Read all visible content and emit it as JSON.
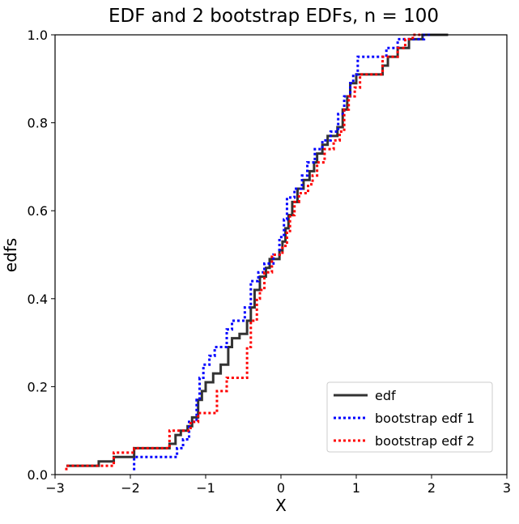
{
  "chart_data": {
    "type": "line",
    "title": "EDF and 2 bootstrap EDFs, n = 100",
    "xlabel": "X",
    "ylabel": "edfs",
    "xlim": [
      -3,
      3
    ],
    "ylim": [
      0,
      1.0
    ],
    "xticks": [
      -3,
      -2,
      -1,
      0,
      1,
      2,
      3
    ],
    "xtick_labels": [
      "−3",
      "−2",
      "−1",
      "0",
      "1",
      "2",
      "3"
    ],
    "yticks": [
      0.0,
      0.2,
      0.4,
      0.6,
      0.8,
      1.0
    ],
    "ytick_labels": [
      "0.0",
      "0.2",
      "0.4",
      "0.6",
      "0.8",
      "1.0"
    ],
    "grid": false,
    "legend_position": "lower-right",
    "series": [
      {
        "name": "edf",
        "color": "#333333",
        "style": "solid",
        "points": [
          [
            -2.85,
            0.02
          ],
          [
            -2.42,
            0.02
          ],
          [
            -2.42,
            0.03
          ],
          [
            -2.22,
            0.03
          ],
          [
            -2.22,
            0.04
          ],
          [
            -1.95,
            0.04
          ],
          [
            -1.95,
            0.06
          ],
          [
            -1.48,
            0.06
          ],
          [
            -1.48,
            0.07
          ],
          [
            -1.4,
            0.07
          ],
          [
            -1.4,
            0.09
          ],
          [
            -1.33,
            0.09
          ],
          [
            -1.33,
            0.1
          ],
          [
            -1.24,
            0.1
          ],
          [
            -1.24,
            0.11
          ],
          [
            -1.18,
            0.11
          ],
          [
            -1.18,
            0.13
          ],
          [
            -1.1,
            0.13
          ],
          [
            -1.1,
            0.17
          ],
          [
            -1.05,
            0.17
          ],
          [
            -1.05,
            0.19
          ],
          [
            -1.0,
            0.19
          ],
          [
            -1.0,
            0.21
          ],
          [
            -0.9,
            0.21
          ],
          [
            -0.9,
            0.23
          ],
          [
            -0.8,
            0.23
          ],
          [
            -0.8,
            0.25
          ],
          [
            -0.7,
            0.25
          ],
          [
            -0.7,
            0.29
          ],
          [
            -0.65,
            0.29
          ],
          [
            -0.65,
            0.31
          ],
          [
            -0.55,
            0.31
          ],
          [
            -0.55,
            0.32
          ],
          [
            -0.45,
            0.32
          ],
          [
            -0.45,
            0.35
          ],
          [
            -0.4,
            0.35
          ],
          [
            -0.4,
            0.38
          ],
          [
            -0.35,
            0.38
          ],
          [
            -0.35,
            0.42
          ],
          [
            -0.28,
            0.42
          ],
          [
            -0.28,
            0.45
          ],
          [
            -0.2,
            0.45
          ],
          [
            -0.2,
            0.47
          ],
          [
            -0.15,
            0.47
          ],
          [
            -0.15,
            0.49
          ],
          [
            -0.02,
            0.49
          ],
          [
            -0.02,
            0.51
          ],
          [
            0.02,
            0.51
          ],
          [
            0.02,
            0.53
          ],
          [
            0.06,
            0.53
          ],
          [
            0.06,
            0.56
          ],
          [
            0.1,
            0.56
          ],
          [
            0.1,
            0.59
          ],
          [
            0.15,
            0.59
          ],
          [
            0.15,
            0.62
          ],
          [
            0.22,
            0.62
          ],
          [
            0.22,
            0.65
          ],
          [
            0.3,
            0.65
          ],
          [
            0.3,
            0.67
          ],
          [
            0.38,
            0.67
          ],
          [
            0.38,
            0.69
          ],
          [
            0.44,
            0.69
          ],
          [
            0.44,
            0.71
          ],
          [
            0.48,
            0.71
          ],
          [
            0.48,
            0.73
          ],
          [
            0.55,
            0.73
          ],
          [
            0.55,
            0.75
          ],
          [
            0.62,
            0.75
          ],
          [
            0.62,
            0.77
          ],
          [
            0.75,
            0.77
          ],
          [
            0.75,
            0.79
          ],
          [
            0.82,
            0.79
          ],
          [
            0.82,
            0.83
          ],
          [
            0.88,
            0.83
          ],
          [
            0.88,
            0.86
          ],
          [
            0.92,
            0.86
          ],
          [
            0.92,
            0.89
          ],
          [
            1.0,
            0.89
          ],
          [
            1.0,
            0.91
          ],
          [
            1.35,
            0.91
          ],
          [
            1.35,
            0.93
          ],
          [
            1.42,
            0.93
          ],
          [
            1.42,
            0.95
          ],
          [
            1.55,
            0.95
          ],
          [
            1.55,
            0.97
          ],
          [
            1.7,
            0.97
          ],
          [
            1.7,
            0.99
          ],
          [
            1.88,
            0.99
          ],
          [
            1.88,
            1.0
          ],
          [
            2.22,
            1.0
          ]
        ]
      },
      {
        "name": "bootstrap edf 1",
        "color": "#0000ff",
        "style": "dotted",
        "points": [
          [
            -1.95,
            0.01
          ],
          [
            -1.95,
            0.04
          ],
          [
            -1.38,
            0.04
          ],
          [
            -1.38,
            0.06
          ],
          [
            -1.3,
            0.06
          ],
          [
            -1.3,
            0.08
          ],
          [
            -1.22,
            0.08
          ],
          [
            -1.22,
            0.12
          ],
          [
            -1.12,
            0.12
          ],
          [
            -1.12,
            0.17
          ],
          [
            -1.08,
            0.17
          ],
          [
            -1.08,
            0.22
          ],
          [
            -1.03,
            0.22
          ],
          [
            -1.03,
            0.25
          ],
          [
            -0.95,
            0.25
          ],
          [
            -0.95,
            0.27
          ],
          [
            -0.88,
            0.27
          ],
          [
            -0.88,
            0.29
          ],
          [
            -0.72,
            0.29
          ],
          [
            -0.72,
            0.33
          ],
          [
            -0.65,
            0.33
          ],
          [
            -0.65,
            0.35
          ],
          [
            -0.48,
            0.35
          ],
          [
            -0.48,
            0.38
          ],
          [
            -0.4,
            0.38
          ],
          [
            -0.4,
            0.44
          ],
          [
            -0.3,
            0.44
          ],
          [
            -0.3,
            0.46
          ],
          [
            -0.22,
            0.46
          ],
          [
            -0.22,
            0.48
          ],
          [
            -0.1,
            0.48
          ],
          [
            -0.1,
            0.5
          ],
          [
            -0.02,
            0.5
          ],
          [
            -0.02,
            0.54
          ],
          [
            0.04,
            0.54
          ],
          [
            0.04,
            0.58
          ],
          [
            0.08,
            0.58
          ],
          [
            0.08,
            0.63
          ],
          [
            0.18,
            0.63
          ],
          [
            0.18,
            0.65
          ],
          [
            0.28,
            0.65
          ],
          [
            0.28,
            0.68
          ],
          [
            0.35,
            0.68
          ],
          [
            0.35,
            0.71
          ],
          [
            0.45,
            0.71
          ],
          [
            0.45,
            0.74
          ],
          [
            0.55,
            0.74
          ],
          [
            0.55,
            0.76
          ],
          [
            0.66,
            0.76
          ],
          [
            0.66,
            0.78
          ],
          [
            0.76,
            0.78
          ],
          [
            0.76,
            0.82
          ],
          [
            0.84,
            0.82
          ],
          [
            0.84,
            0.86
          ],
          [
            0.92,
            0.86
          ],
          [
            0.92,
            0.89
          ],
          [
            0.96,
            0.89
          ],
          [
            0.96,
            0.91
          ],
          [
            1.02,
            0.91
          ],
          [
            1.02,
            0.95
          ],
          [
            1.4,
            0.95
          ],
          [
            1.4,
            0.97
          ],
          [
            1.55,
            0.97
          ],
          [
            1.55,
            0.99
          ],
          [
            1.9,
            0.99
          ],
          [
            1.9,
            1.0
          ],
          [
            2.0,
            1.0
          ]
        ]
      },
      {
        "name": "bootstrap edf 2",
        "color": "#ff0000",
        "style": "dotted",
        "points": [
          [
            -2.85,
            0.01
          ],
          [
            -2.85,
            0.02
          ],
          [
            -2.22,
            0.02
          ],
          [
            -2.22,
            0.05
          ],
          [
            -1.95,
            0.05
          ],
          [
            -1.95,
            0.06
          ],
          [
            -1.48,
            0.06
          ],
          [
            -1.48,
            0.1
          ],
          [
            -1.2,
            0.1
          ],
          [
            -1.2,
            0.12
          ],
          [
            -1.1,
            0.12
          ],
          [
            -1.1,
            0.14
          ],
          [
            -0.85,
            0.14
          ],
          [
            -0.85,
            0.19
          ],
          [
            -0.72,
            0.19
          ],
          [
            -0.72,
            0.22
          ],
          [
            -0.45,
            0.22
          ],
          [
            -0.45,
            0.29
          ],
          [
            -0.4,
            0.29
          ],
          [
            -0.4,
            0.35
          ],
          [
            -0.32,
            0.35
          ],
          [
            -0.32,
            0.4
          ],
          [
            -0.28,
            0.4
          ],
          [
            -0.28,
            0.42
          ],
          [
            -0.22,
            0.42
          ],
          [
            -0.22,
            0.46
          ],
          [
            -0.12,
            0.46
          ],
          [
            -0.12,
            0.5
          ],
          [
            0.02,
            0.5
          ],
          [
            0.02,
            0.52
          ],
          [
            0.08,
            0.52
          ],
          [
            0.08,
            0.55
          ],
          [
            0.12,
            0.55
          ],
          [
            0.12,
            0.59
          ],
          [
            0.18,
            0.59
          ],
          [
            0.18,
            0.62
          ],
          [
            0.24,
            0.62
          ],
          [
            0.24,
            0.64
          ],
          [
            0.36,
            0.64
          ],
          [
            0.36,
            0.66
          ],
          [
            0.42,
            0.66
          ],
          [
            0.42,
            0.68
          ],
          [
            0.48,
            0.68
          ],
          [
            0.48,
            0.71
          ],
          [
            0.58,
            0.71
          ],
          [
            0.58,
            0.74
          ],
          [
            0.7,
            0.74
          ],
          [
            0.7,
            0.76
          ],
          [
            0.78,
            0.76
          ],
          [
            0.78,
            0.78
          ],
          [
            0.84,
            0.78
          ],
          [
            0.84,
            0.83
          ],
          [
            0.9,
            0.83
          ],
          [
            0.9,
            0.86
          ],
          [
            0.98,
            0.86
          ],
          [
            0.98,
            0.88
          ],
          [
            1.05,
            0.88
          ],
          [
            1.05,
            0.91
          ],
          [
            1.35,
            0.91
          ],
          [
            1.35,
            0.95
          ],
          [
            1.55,
            0.95
          ],
          [
            1.55,
            0.97
          ],
          [
            1.65,
            0.97
          ],
          [
            1.65,
            0.99
          ],
          [
            1.75,
            0.99
          ],
          [
            1.75,
            1.0
          ],
          [
            1.88,
            1.0
          ]
        ]
      }
    ]
  }
}
